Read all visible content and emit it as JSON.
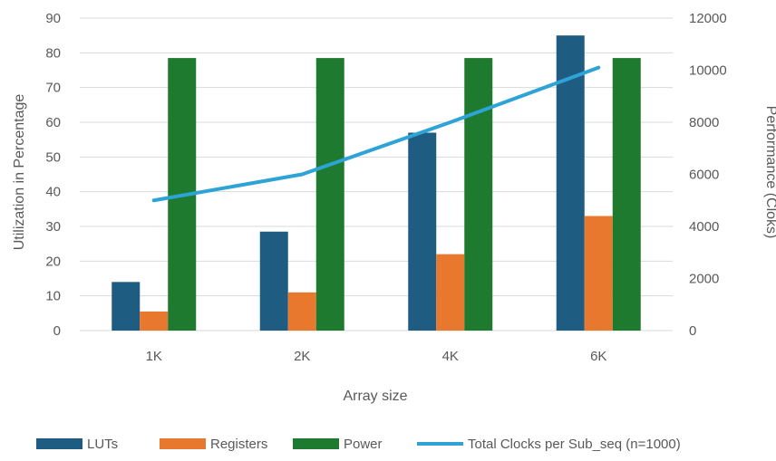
{
  "chart_data": {
    "type": "bar",
    "combo": "bar + line (secondary axis)",
    "title": "",
    "xlabel": "Array size",
    "ylabel_left": "Utilization in Percentage",
    "ylabel_right": "Performance (Cloks)",
    "categories": [
      "1K",
      "2K",
      "4K",
      "6K"
    ],
    "ylim_left": [
      0,
      90
    ],
    "yticks_left": [
      "0",
      "10",
      "20",
      "30",
      "40",
      "50",
      "60",
      "70",
      "80",
      "90"
    ],
    "ylim_right": [
      0,
      12000
    ],
    "yticks_right": [
      "0",
      "2000",
      "4000",
      "6000",
      "8000",
      "10000",
      "12000"
    ],
    "grid": true,
    "legend_position": "bottom",
    "series": [
      {
        "name": "LUTs",
        "kind": "bar",
        "axis": "left",
        "color": "#1f5c82",
        "values": [
          14,
          28.5,
          57,
          85
        ]
      },
      {
        "name": "Registers",
        "kind": "bar",
        "axis": "left",
        "color": "#e8782e",
        "values": [
          5.5,
          11,
          22,
          33
        ]
      },
      {
        "name": "Power",
        "kind": "bar",
        "axis": "left",
        "color": "#1e7a2e",
        "values": [
          78.5,
          78.5,
          78.5,
          78.5
        ]
      },
      {
        "name": "Total Clocks per Sub_seq (n=1000)",
        "kind": "line",
        "axis": "right",
        "color": "#2ea3d6",
        "values": [
          5000,
          6000,
          8000,
          10100
        ]
      }
    ]
  }
}
